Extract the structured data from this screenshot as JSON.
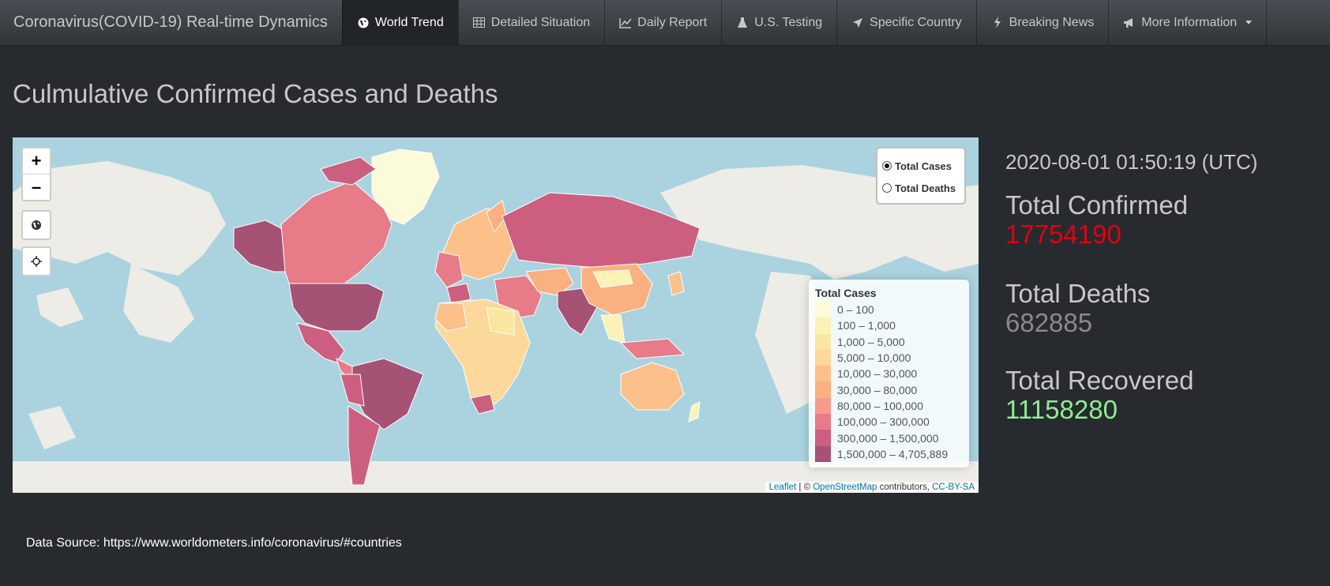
{
  "app": {
    "brand": "Coronavirus(COVID-19) Real-time Dynamics"
  },
  "nav": {
    "items": [
      {
        "label": "World Trend",
        "icon": "globe-icon",
        "active": true
      },
      {
        "label": "Detailed Situation",
        "icon": "table-icon",
        "active": false
      },
      {
        "label": "Daily Report",
        "icon": "line-chart-icon",
        "active": false
      },
      {
        "label": "U.S. Testing",
        "icon": "flask-icon",
        "active": false
      },
      {
        "label": "Specific Country",
        "icon": "location-arrow-icon",
        "active": false
      },
      {
        "label": "Breaking News",
        "icon": "bolt-icon",
        "active": false
      },
      {
        "label": "More Information",
        "icon": "bullhorn-icon",
        "active": false
      }
    ]
  },
  "page": {
    "title": "Culmulative Confirmed Cases and Deaths"
  },
  "map": {
    "zoom_in": "+",
    "zoom_out": "–",
    "layers": [
      {
        "label": "Total Cases",
        "selected": true
      },
      {
        "label": "Total Deaths",
        "selected": false
      }
    ],
    "legend": {
      "title": "Total Cases",
      "bins": [
        {
          "label": "0 – 100",
          "color": "#fcfbd9"
        },
        {
          "label": "100 – 1,000",
          "color": "#faf2b6"
        },
        {
          "label": "1,000 – 5,000",
          "color": "#f9e7a1"
        },
        {
          "label": "5,000 – 10,000",
          "color": "#fcd89a"
        },
        {
          "label": "10,000 – 30,000",
          "color": "#fcc08a"
        },
        {
          "label": "30,000 – 80,000",
          "color": "#fab07f"
        },
        {
          "label": "80,000 – 100,000",
          "color": "#f79a8c"
        },
        {
          "label": "100,000 – 300,000",
          "color": "#e77b88"
        },
        {
          "label": "300,000 – 1,500,000",
          "color": "#cc5f7f"
        },
        {
          "label": "1,500,000 – 4,705,889",
          "color": "#a65274"
        }
      ]
    },
    "attribution": {
      "leaflet": "Leaflet",
      "sep": " | © ",
      "osm": "OpenStreetMap",
      "contrib": " contributors, ",
      "license": "CC-BY-SA"
    }
  },
  "stats": {
    "timestamp": "2020-08-01 01:50:19 (UTC)",
    "confirmed_label": "Total Confirmed",
    "confirmed_value": "17754190",
    "confirmed_color": "#e3000f",
    "deaths_label": "Total Deaths",
    "deaths_value": "682885",
    "deaths_color": "#8a8a8a",
    "recovered_label": "Total Recovered",
    "recovered_value": "11158280",
    "recovered_color": "#90ee90"
  },
  "footer": {
    "source": "Data Source: https://www.worldometers.info/coronavirus/#countries"
  }
}
